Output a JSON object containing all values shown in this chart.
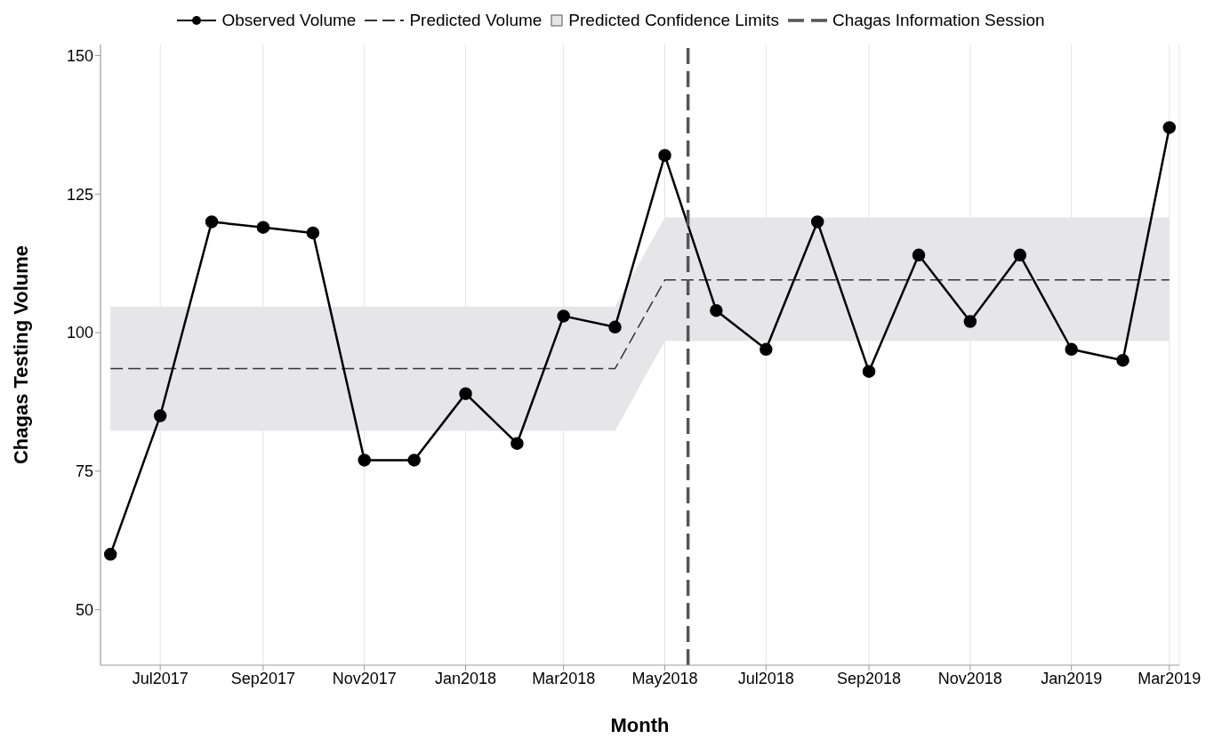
{
  "chart_data": {
    "type": "line",
    "xlabel": "Month",
    "ylabel": "Chagas Testing Volume",
    "x": [
      "2017-06",
      "2017-07",
      "2017-08",
      "2017-09",
      "2017-10",
      "2017-11",
      "2017-12",
      "2018-01",
      "2018-02",
      "2018-03",
      "2018-04",
      "2018-05",
      "2018-06",
      "2018-07",
      "2018-08",
      "2018-09",
      "2018-10",
      "2018-11",
      "2018-12",
      "2019-01",
      "2019-02",
      "2019-03"
    ],
    "series": [
      {
        "name": "Predicted Confidence Limits",
        "type": "area",
        "color": "#e6e5e8",
        "values": [
          null,
          null,
          null,
          null,
          null,
          null,
          null,
          null,
          null,
          null,
          null,
          null,
          null,
          null,
          null,
          null,
          null,
          null,
          null,
          null,
          null,
          null
        ],
        "lower": [
          82.3,
          82.3,
          82.3,
          82.3,
          82.3,
          82.3,
          82.3,
          82.3,
          82.3,
          82.3,
          82.3,
          98.5,
          98.5,
          98.5,
          98.5,
          98.5,
          98.5,
          98.5,
          98.5,
          98.5,
          98.5,
          98.5
        ],
        "upper": [
          104.7,
          104.7,
          104.7,
          104.7,
          104.7,
          104.7,
          104.7,
          104.7,
          104.7,
          104.7,
          104.7,
          120.8,
          120.8,
          120.8,
          120.8,
          120.8,
          120.8,
          120.8,
          120.8,
          120.8,
          120.8,
          120.8
        ]
      },
      {
        "name": "Predicted Volume",
        "type": "line",
        "color": "#333333",
        "line_style": "dashed",
        "marker": "none",
        "values": [
          93.5,
          93.5,
          93.5,
          93.5,
          93.5,
          93.5,
          93.5,
          93.5,
          93.5,
          93.5,
          93.5,
          109.5,
          109.5,
          109.5,
          109.5,
          109.5,
          109.5,
          109.5,
          109.5,
          109.5,
          109.5,
          109.5
        ]
      },
      {
        "name": "Observed Volume",
        "type": "line",
        "color": "#000000",
        "line_style": "solid",
        "marker": "circle",
        "values": [
          60,
          85,
          120,
          119,
          118,
          77,
          77,
          89,
          80,
          103,
          101,
          132,
          104,
          97,
          120,
          93,
          114,
          102,
          114,
          97,
          95,
          137
        ]
      }
    ],
    "ref_lines": [
      {
        "axis": "x",
        "value": "2018-05-15",
        "label": "Chagas Information Session",
        "color": "#555555",
        "line_style": "dashed"
      }
    ],
    "xlim": [
      "2017-05-26",
      "2019-03-07"
    ],
    "xticks": [
      {
        "value": "2017-07",
        "label": "Jul2017"
      },
      {
        "value": "2017-09",
        "label": "Sep2017"
      },
      {
        "value": "2017-11",
        "label": "Nov2017"
      },
      {
        "value": "2018-01",
        "label": "Jan2018"
      },
      {
        "value": "2018-03",
        "label": "Mar2018"
      },
      {
        "value": "2018-05",
        "label": "May2018"
      },
      {
        "value": "2018-07",
        "label": "Jul2018"
      },
      {
        "value": "2018-09",
        "label": "Sep2018"
      },
      {
        "value": "2018-11",
        "label": "Nov2018"
      },
      {
        "value": "2019-01",
        "label": "Jan2019"
      },
      {
        "value": "2019-03",
        "label": "Mar2019"
      }
    ],
    "ylim": [
      40,
      152
    ],
    "yticks": [
      50,
      75,
      100,
      125,
      150
    ],
    "grid": "x",
    "legend": "top"
  }
}
